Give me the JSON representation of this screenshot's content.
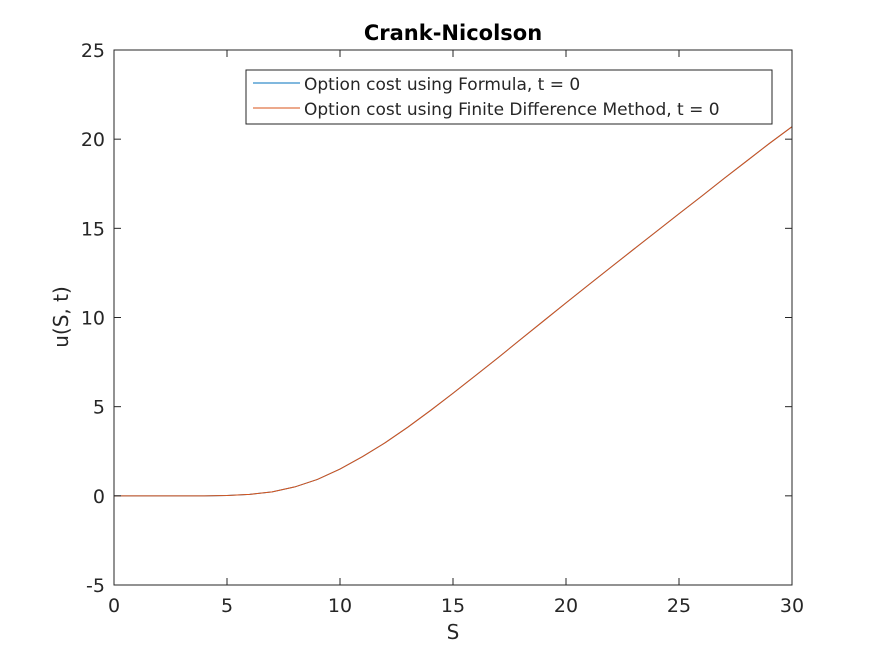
{
  "chart_data": {
    "type": "line",
    "title": "Crank-Nicolson",
    "xlabel": "S",
    "ylabel": "u(S, t)",
    "xlim": [
      0,
      30
    ],
    "ylim": [
      -5,
      25
    ],
    "x_ticks": [
      0,
      5,
      10,
      15,
      20,
      25,
      30
    ],
    "y_ticks": [
      -5,
      0,
      5,
      10,
      15,
      20,
      25
    ],
    "x_tick_labels": [
      "0",
      "5",
      "10",
      "15",
      "20",
      "25",
      "30"
    ],
    "y_tick_labels": [
      "-5",
      "0",
      "5",
      "10",
      "15",
      "20",
      "25"
    ],
    "grid": false,
    "legend_position": "top-right",
    "x": [
      0,
      1,
      2,
      3,
      4,
      5,
      6,
      7,
      8,
      9,
      10,
      11,
      12,
      13,
      14,
      15,
      16,
      17,
      18,
      19,
      20,
      21,
      22,
      23,
      24,
      25,
      26,
      27,
      28,
      29,
      30
    ],
    "series": [
      {
        "name": "Option cost using Formula, t = 0",
        "color": "#0072bd",
        "values": [
          0,
          0,
          0,
          0,
          0,
          0.02,
          0.08,
          0.22,
          0.5,
          0.92,
          1.5,
          2.2,
          2.98,
          3.85,
          4.78,
          5.75,
          6.75,
          7.75,
          8.78,
          9.8,
          10.82,
          11.83,
          12.83,
          13.83,
          14.82,
          15.82,
          16.8,
          17.8,
          18.78,
          19.76,
          20.7
        ]
      },
      {
        "name": "Option cost using Finite Difference Method, t = 0",
        "color": "#d95319",
        "values": [
          0,
          0,
          0,
          0,
          0,
          0.02,
          0.08,
          0.22,
          0.5,
          0.92,
          1.5,
          2.2,
          2.98,
          3.85,
          4.78,
          5.75,
          6.75,
          7.75,
          8.78,
          9.8,
          10.82,
          11.83,
          12.83,
          13.83,
          14.82,
          15.82,
          16.8,
          17.8,
          18.78,
          19.76,
          20.7
        ]
      }
    ]
  }
}
